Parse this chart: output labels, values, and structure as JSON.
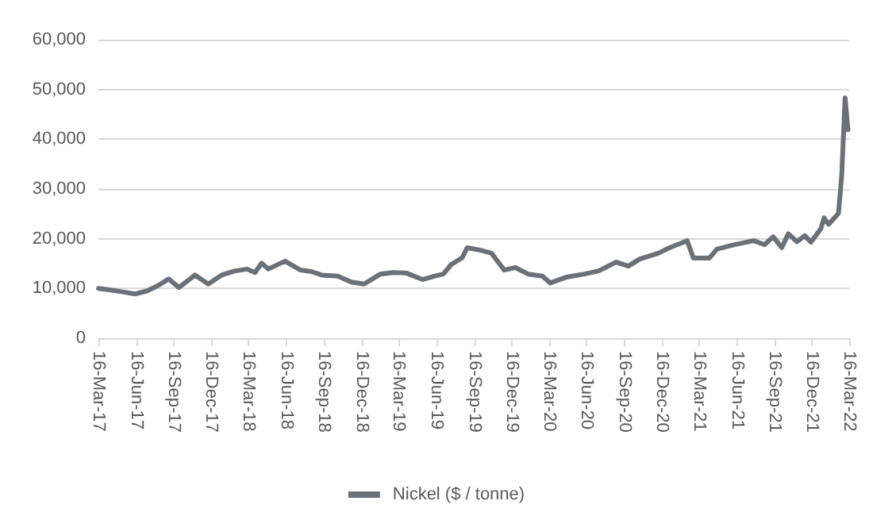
{
  "chart_data": {
    "type": "line",
    "x": [
      "2017-03-16",
      "2017-04-14",
      "2017-05-08",
      "2017-06-13",
      "2017-07-12",
      "2017-08-06",
      "2017-09-03",
      "2017-09-28",
      "2017-11-06",
      "2017-12-08",
      "2018-01-10",
      "2018-02-10",
      "2018-03-13",
      "2018-04-01",
      "2018-04-17",
      "2018-05-03",
      "2018-06-13",
      "2018-07-20",
      "2018-08-16",
      "2018-09-10",
      "2018-10-19",
      "2018-11-21",
      "2018-12-22",
      "2019-01-31",
      "2019-03-03",
      "2019-04-04",
      "2019-05-13",
      "2019-06-13",
      "2019-07-03",
      "2019-07-22",
      "2019-08-18",
      "2019-08-30",
      "2019-10-01",
      "2019-10-28",
      "2019-11-28",
      "2019-12-25",
      "2020-01-25",
      "2020-02-29",
      "2020-03-19",
      "2020-04-28",
      "2020-06-10",
      "2020-07-14",
      "2020-08-26",
      "2020-09-25",
      "2020-10-22",
      "2020-12-07",
      "2021-01-03",
      "2021-02-15",
      "2021-03-02",
      "2021-04-10",
      "2021-04-28",
      "2021-06-10",
      "2021-07-27",
      "2021-08-22",
      "2021-09-12",
      "2021-10-03",
      "2021-10-19",
      "2021-11-09",
      "2021-11-28",
      "2021-12-13",
      "2022-01-06",
      "2022-01-14",
      "2022-01-25",
      "2022-02-18",
      "2022-02-26",
      "2022-03-06",
      "2022-03-13"
    ],
    "series": [
      {
        "name": "Nickel ($ / tonne)",
        "color": "#6b7178",
        "values": [
          10000,
          9700,
          9400,
          8900,
          9500,
          10500,
          11900,
          10200,
          12700,
          10900,
          12700,
          13500,
          13900,
          13200,
          15100,
          13900,
          15500,
          13700,
          13400,
          12700,
          12500,
          11300,
          10900,
          12900,
          13200,
          13100,
          11800,
          12500,
          12900,
          14800,
          16200,
          18200,
          17700,
          17100,
          13700,
          14200,
          12900,
          12500,
          11100,
          12300,
          12900,
          13500,
          15300,
          14500,
          15900,
          17100,
          18200,
          19600,
          16100,
          16100,
          17900,
          18800,
          19600,
          18800,
          20400,
          18200,
          21000,
          19400,
          20600,
          19300,
          22000,
          24200,
          22900,
          25100,
          32900,
          48300,
          41900
        ]
      }
    ],
    "xlim": [
      "2017-03-16",
      "2022-03-16"
    ],
    "xticks": [
      {
        "value": "2017-03-16",
        "label": "16-Mar-17"
      },
      {
        "value": "2017-06-16",
        "label": "16-Jun-17"
      },
      {
        "value": "2017-09-16",
        "label": "16-Sep-17"
      },
      {
        "value": "2017-12-16",
        "label": "16-Dec-17"
      },
      {
        "value": "2018-03-16",
        "label": "16-Mar-18"
      },
      {
        "value": "2018-06-16",
        "label": "16-Jun-18"
      },
      {
        "value": "2018-09-16",
        "label": "16-Sep-18"
      },
      {
        "value": "2018-12-16",
        "label": "16-Dec-18"
      },
      {
        "value": "2019-03-16",
        "label": "16-Mar-19"
      },
      {
        "value": "2019-06-16",
        "label": "16-Jun-19"
      },
      {
        "value": "2019-09-16",
        "label": "16-Sep-19"
      },
      {
        "value": "2019-12-16",
        "label": "16-Dec-19"
      },
      {
        "value": "2020-03-16",
        "label": "16-Mar-20"
      },
      {
        "value": "2020-06-16",
        "label": "16-Jun-20"
      },
      {
        "value": "2020-09-16",
        "label": "16-Sep-20"
      },
      {
        "value": "2020-12-16",
        "label": "16-Dec-20"
      },
      {
        "value": "2021-03-16",
        "label": "16-Mar-21"
      },
      {
        "value": "2021-06-16",
        "label": "16-Jun-21"
      },
      {
        "value": "2021-09-16",
        "label": "16-Sep-21"
      },
      {
        "value": "2021-12-16",
        "label": "16-Dec-21"
      },
      {
        "value": "2022-03-16",
        "label": "16-Mar-22"
      }
    ],
    "ylim": [
      0,
      60000
    ],
    "yticks": [
      {
        "value": 0,
        "label": "0"
      },
      {
        "value": 10000,
        "label": "10,000"
      },
      {
        "value": 20000,
        "label": "20,000"
      },
      {
        "value": 30000,
        "label": "30,000"
      },
      {
        "value": 40000,
        "label": "40,000"
      },
      {
        "value": 50000,
        "label": "50,000"
      },
      {
        "value": 60000,
        "label": "60,000"
      }
    ],
    "grid": "y",
    "legend": "bottom",
    "marker": "none",
    "line_style": "solid"
  }
}
